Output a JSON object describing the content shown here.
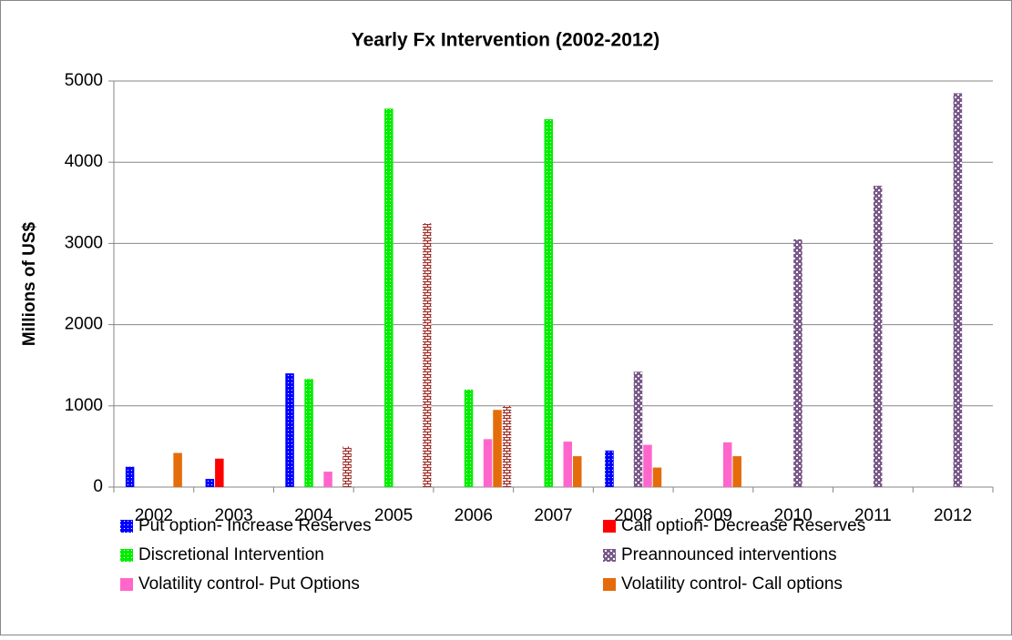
{
  "chart_data": {
    "type": "bar",
    "title": "Yearly Fx Intervention (2002-2012)",
    "y_label": "Millions of US$",
    "categories": [
      "2002",
      "2003",
      "2004",
      "2005",
      "2006",
      "2007",
      "2008",
      "2009",
      "2010",
      "2011",
      "2012"
    ],
    "series": [
      {
        "name": "Put option- Increase Reserves",
        "color": "#0000ff",
        "pattern": "dots",
        "values": [
          250,
          100,
          1400,
          null,
          null,
          null,
          450,
          null,
          null,
          null,
          null
        ]
      },
      {
        "name": "Call option- Decrease Reserves",
        "color": "#ff0000",
        "pattern": "solid",
        "values": [
          null,
          350,
          null,
          null,
          null,
          null,
          null,
          null,
          null,
          null,
          null
        ]
      },
      {
        "name": "Discretional Intervention",
        "color": "#00ee00",
        "pattern": "dots",
        "values": [
          null,
          null,
          1330,
          4660,
          1200,
          4530,
          null,
          null,
          null,
          null,
          null
        ]
      },
      {
        "name": "Preannounced interventions",
        "color": "#7a5a8a",
        "pattern": "checker",
        "values": [
          null,
          null,
          null,
          null,
          null,
          null,
          1420,
          null,
          3050,
          3710,
          4850
        ]
      },
      {
        "name": "Volatility control- Put Options",
        "color": "#ff66cc",
        "pattern": "solid",
        "values": [
          null,
          null,
          190,
          null,
          590,
          560,
          520,
          550,
          null,
          null,
          null
        ]
      },
      {
        "name": "Volatility control- Call options",
        "color": "#e46c0a",
        "pattern": "solid",
        "values": [
          420,
          null,
          null,
          null,
          950,
          380,
          240,
          380,
          null,
          null,
          null
        ]
      },
      {
        "color": "#a0302a",
        "pattern": "brick",
        "values": [
          null,
          null,
          500,
          3250,
          1000,
          null,
          null,
          null,
          null,
          null,
          null
        ]
      }
    ],
    "ylim": [
      0,
      5000
    ],
    "yticks": [
      0,
      1000,
      2000,
      3000,
      4000,
      5000
    ],
    "grid": true,
    "legend": "bottom"
  }
}
